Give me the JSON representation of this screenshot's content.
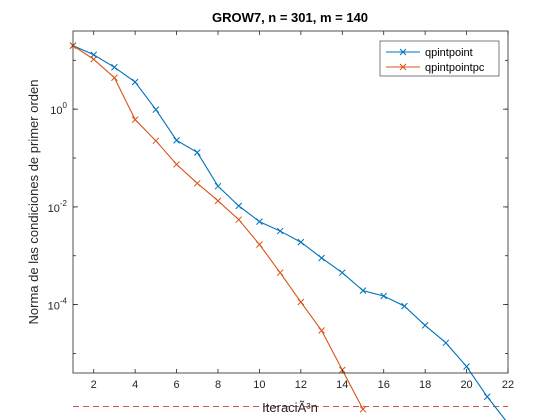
{
  "chart_data": {
    "type": "line",
    "title": "GROW7, n = 301, m = 140",
    "xlabel": "IteraciÃ³n",
    "ylabel": "Norma de las condiciones de primer orden",
    "xlim": [
      1,
      22
    ],
    "ylim_log10": [
      -5.4,
      1.6
    ],
    "yscale": "log",
    "x_ticks": [
      2,
      4,
      6,
      8,
      10,
      12,
      14,
      16,
      18,
      20,
      22
    ],
    "y_ticks": [
      {
        "base": "10",
        "exp": "0",
        "value": 1
      },
      {
        "base": "10",
        "exp": "-2",
        "value": 0.01
      },
      {
        "base": "10",
        "exp": "-4",
        "value": 0.0001
      }
    ],
    "grid": false,
    "legend_position": "top-right",
    "series": [
      {
        "name": "qpintpoint",
        "color": "#0072BD",
        "marker": "x",
        "x": [
          1,
          2,
          3,
          4,
          5,
          6,
          7,
          8,
          9,
          10,
          11,
          12,
          13,
          14,
          15,
          16,
          17,
          18,
          19,
          20,
          21,
          22
        ],
        "y": [
          20,
          13,
          7.2,
          3.6,
          0.98,
          0.23,
          0.13,
          0.0265,
          0.0105,
          0.005,
          0.0032,
          0.0019,
          0.0009,
          0.00045,
          0.000193,
          0.00015,
          9.3e-05,
          3.75e-05,
          1.65e-05,
          5.4e-06,
          1.3e-06,
          3.7e-07
        ]
      },
      {
        "name": "qpintpointpc",
        "color": "#D95319",
        "marker": "x",
        "x": [
          1,
          2,
          3,
          4,
          5,
          6,
          7,
          8,
          9,
          10,
          11,
          12,
          13,
          14,
          15
        ],
        "y": [
          20,
          10.5,
          4.4,
          0.61,
          0.225,
          0.074,
          0.0304,
          0.0133,
          0.0055,
          0.0017,
          0.00045,
          0.000113,
          2.95e-05,
          4.6e-06,
          7.2e-07
        ]
      }
    ],
    "reference_line": {
      "y": 8.2e-07,
      "color": "#D9534F",
      "style": "dashed"
    }
  }
}
